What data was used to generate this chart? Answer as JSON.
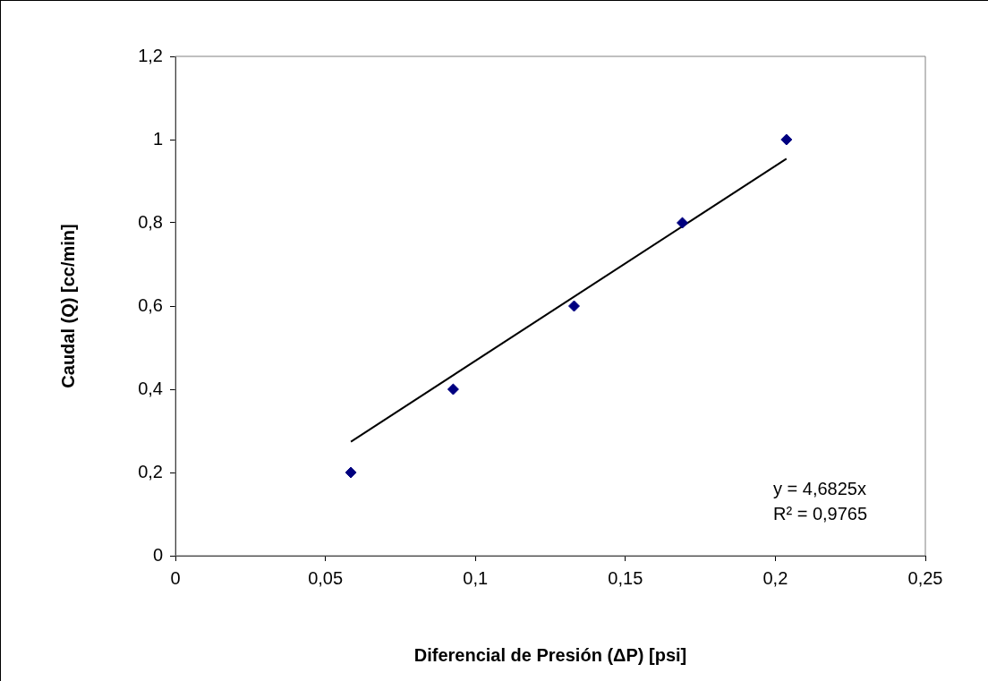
{
  "chart_data": {
    "type": "scatter",
    "xlabel": "Diferencial de Presión (ΔP) [psi]",
    "ylabel": "Caudal (Q) [cc/min]",
    "xlim": [
      0,
      0.25
    ],
    "xticks": [
      0,
      {
        "value": 0.05,
        "label": "0,05"
      },
      {
        "value": 0.1,
        "label": "0,1"
      },
      {
        "value": 0.15,
        "label": "0,15"
      },
      {
        "value": 0.2,
        "label": "0,2"
      },
      {
        "value": 0.25,
        "label": "0,25"
      }
    ],
    "ylim": [
      0,
      1.2
    ],
    "yticks": [
      0,
      {
        "value": 0.2,
        "label": "0,2"
      },
      {
        "value": 0.4,
        "label": "0,4"
      },
      {
        "value": 0.6,
        "label": "0,6"
      },
      {
        "value": 0.8,
        "label": "0,8"
      },
      1,
      {
        "value": 1.2,
        "label": "1,2"
      }
    ],
    "grid": false,
    "marker": "diamond",
    "series": [
      {
        "type": "scatter",
        "color": "#000080",
        "x": [
          0.0585,
          0.0926,
          0.1329,
          0.169,
          0.2037
        ],
        "values": [
          0.2,
          0.4,
          0.6,
          0.8,
          1.0
        ]
      },
      {
        "type": "line",
        "color": "#000000",
        "marker": "none",
        "line_style": "solid",
        "x": [
          0.0585,
          0.2037
        ],
        "values": [
          0.274,
          0.954
        ]
      }
    ],
    "annotations": [
      "y = 4,6825x",
      "R² = 0,9765"
    ]
  }
}
